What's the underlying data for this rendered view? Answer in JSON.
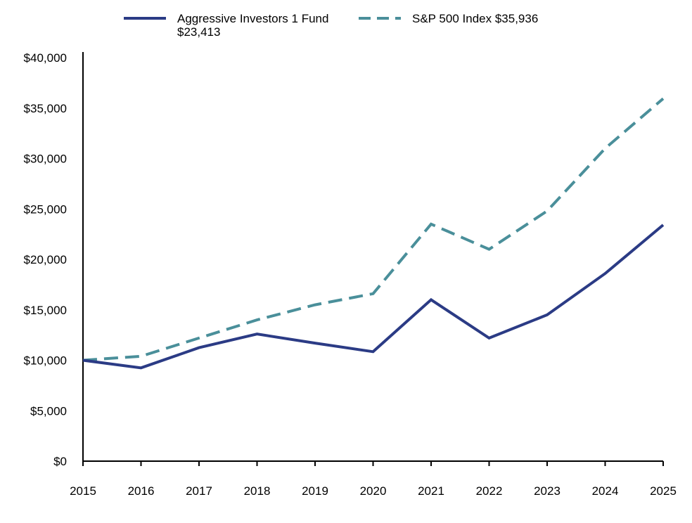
{
  "chart_data": {
    "type": "line",
    "title": "",
    "xlabel": "",
    "ylabel": "",
    "x": [
      "2015",
      "2016",
      "2017",
      "2018",
      "2019",
      "2020",
      "2021",
      "2022",
      "2023",
      "2024",
      "2025"
    ],
    "ylim": [
      0,
      40000
    ],
    "yticks": [
      0,
      5000,
      10000,
      15000,
      20000,
      25000,
      30000,
      35000,
      40000
    ],
    "ytick_labels": [
      "$0",
      "$5,000",
      "$10,000",
      "$15,000",
      "$20,000",
      "$25,000",
      "$30,000",
      "$35,000",
      "$40,000"
    ],
    "grid": false,
    "legend_position": "top-center",
    "series": [
      {
        "name": "Aggressive Investors 1 Fund",
        "legend_line1": "Aggressive Investors 1 Fund",
        "legend_line2": "$23,413",
        "color": "#2b3b85",
        "style": "solid",
        "values": [
          10000,
          9250,
          11250,
          12600,
          11700,
          10850,
          16000,
          12200,
          14500,
          18600,
          23413
        ]
      },
      {
        "name": "S&P 500 Index",
        "legend_line1": "S&P 500 Index $35,936",
        "color": "#4a8f9a",
        "style": "dashed",
        "values": [
          10000,
          10400,
          12200,
          14000,
          15500,
          16600,
          23500,
          21000,
          24800,
          31000,
          35936
        ]
      }
    ]
  }
}
